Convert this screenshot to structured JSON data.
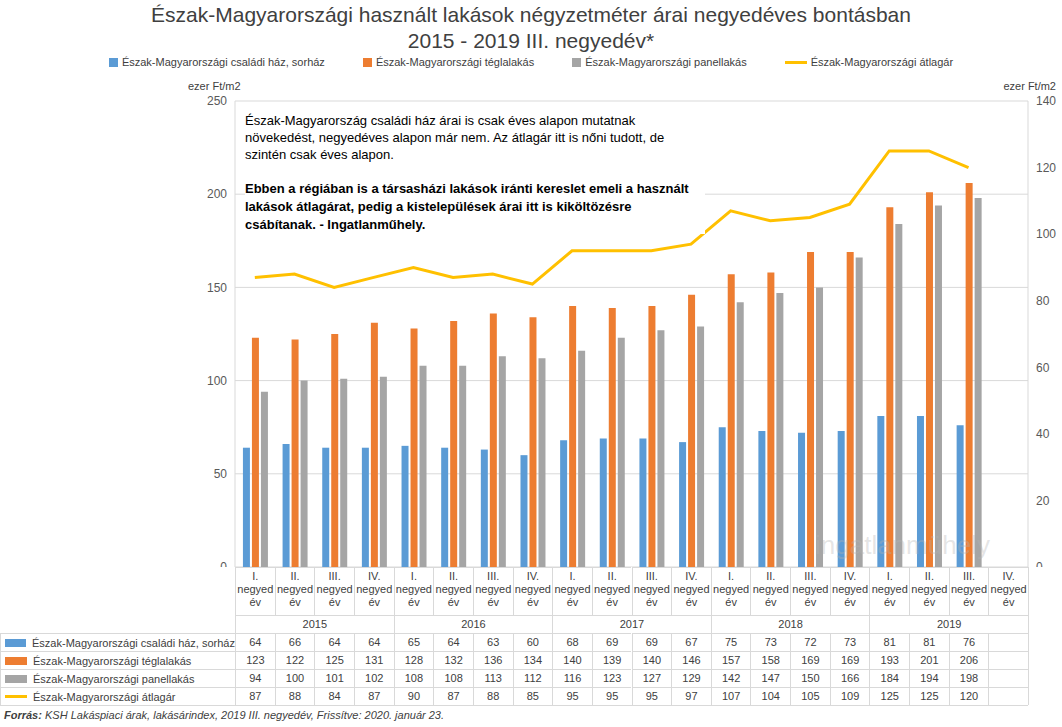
{
  "chart_data": {
    "type": "bar",
    "title": "Észak-Magyarországi használt lakások négyzetméter árai negyedéves bontásban",
    "subtitle": "2015 - 2019 III. negyedév*",
    "categories": [
      "I. negyed év",
      "II. negyed év",
      "III. negyed év",
      "IV. negyed év",
      "I. negyed év",
      "II. negyed év",
      "III. negyed év",
      "IV. negyed év",
      "I. negyed év",
      "II. negyed év",
      "III. negyed év",
      "IV. negyed év",
      "I. negyed év",
      "II. negyed év",
      "III. negyed év",
      "IV. negyed év",
      "I. negyed év",
      "II. negyed év",
      "III. negyed év",
      "IV. negyed év"
    ],
    "years": [
      "2015",
      "2016",
      "2017",
      "2018",
      "2019"
    ],
    "y_label": "ezer Ft/m2",
    "y2_label": "ezer Ft/m2",
    "ylim": [
      0,
      250
    ],
    "yticks": [
      0,
      50,
      100,
      150,
      200,
      250
    ],
    "y2lim": [
      0,
      140
    ],
    "y2ticks": [
      0,
      20,
      40,
      60,
      80,
      100,
      120,
      140
    ],
    "grid": true,
    "legend": "top",
    "series": [
      {
        "name": "Észak-Magyarországi családi ház, sorház",
        "type": "bar",
        "color": "#5b9bd5",
        "values": [
          64,
          66,
          64,
          64,
          65,
          64,
          63,
          60,
          68,
          69,
          69,
          67,
          75,
          73,
          72,
          73,
          81,
          81,
          76,
          null
        ]
      },
      {
        "name": "Észak-Magyarországi téglalakás",
        "type": "bar",
        "color": "#ed7d31",
        "values": [
          123,
          122,
          125,
          131,
          128,
          132,
          136,
          134,
          140,
          139,
          140,
          146,
          157,
          158,
          169,
          169,
          193,
          201,
          206,
          null
        ]
      },
      {
        "name": "Észak-Magyarországi panellakás",
        "type": "bar",
        "color": "#a5a5a5",
        "values": [
          94,
          100,
          101,
          102,
          108,
          108,
          113,
          112,
          116,
          123,
          127,
          129,
          142,
          147,
          150,
          166,
          184,
          194,
          198,
          null
        ]
      },
      {
        "name": "Észak-Magyarországi átlagár",
        "type": "line",
        "axis": "y2",
        "color": "#ffc000",
        "values": [
          87,
          88,
          84,
          87,
          90,
          87,
          88,
          85,
          95,
          95,
          95,
          97,
          107,
          104,
          105,
          109,
          125,
          125,
          120,
          null
        ]
      }
    ],
    "annotations": [
      "Észak-Magyarország családi ház árai is csak éves alapon mutatnak növekedést, negyedéves alapon már nem. Az átlagár itt is nőni tudott, de szintén csak éves alapon.",
      "Ebben a régiában is a társasházi lakások iránti kereslet emeli a használt lakások átlagárat, pedig a kistelepülések árai itt is kiköltözésre csábítanak. - Ingatlanműhely."
    ],
    "watermark": "ingatlanmühely",
    "source": "Forrás: KSH Lakáspiaci árak, lakásárindex, 2019 III. negyedév, Frissítve: 2020. január 23."
  }
}
